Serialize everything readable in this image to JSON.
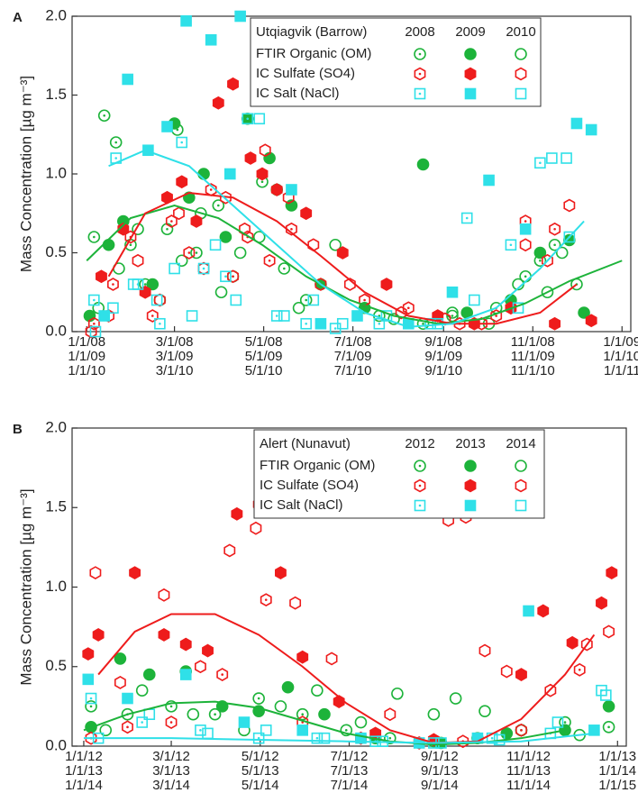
{
  "chart_data": [
    {
      "type": "scatter",
      "panel": "A",
      "ylabel": "Mass Concentration [µg m⁻³]",
      "legend_title": "Utqiagvik (Barrow)",
      "years": [
        "2008",
        "2009",
        "2010"
      ],
      "species": [
        {
          "name": "FTIR Organic (OM)",
          "color": "#1db33a",
          "shape": "circle"
        },
        {
          "name": "IC Sulfate (SO4)",
          "color": "#ee1c1c",
          "shape": "hexagon"
        },
        {
          "name": "IC Salt (NaCl)",
          "color": "#2fe0e8",
          "shape": "square"
        }
      ],
      "styles": [
        "dotted",
        "filled",
        "open"
      ],
      "xlim": [
        -10,
        372
      ],
      "ylim": [
        0,
        2.0
      ],
      "xticks": [
        {
          "value": 0,
          "label": [
            "1/1/08",
            "1/1/09",
            "1/1/10"
          ]
        },
        {
          "value": 60,
          "label": [
            "3/1/08",
            "3/1/09",
            "3/1/10"
          ]
        },
        {
          "value": 121,
          "label": [
            "5/1/08",
            "5/1/09",
            "5/1/10"
          ]
        },
        {
          "value": 182,
          "label": [
            "7/1/08",
            "7/1/09",
            "7/1/10"
          ]
        },
        {
          "value": 244,
          "label": [
            "9/1/08",
            "9/1/09",
            "9/1/10"
          ]
        },
        {
          "value": 305,
          "label": [
            "11/1/08",
            "11/1/09",
            "11/1/10"
          ]
        },
        {
          "value": 366,
          "label": [
            "1/1/09",
            "1/1/10",
            "1/1/11"
          ]
        }
      ],
      "yticks": [
        {
          "value": 0,
          "label": "0.0"
        },
        {
          "value": 0.5,
          "label": "0.5"
        },
        {
          "value": 1.0,
          "label": "1.0"
        },
        {
          "value": 1.5,
          "label": "1.5"
        },
        {
          "value": 2.0,
          "label": "2.0"
        }
      ],
      "series": [
        {
          "species": 0,
          "year": 0,
          "x": [
            5,
            12,
            20,
            30,
            40,
            55,
            62,
            75,
            90,
            100,
            120,
            135,
            150,
            200,
            230,
            250,
            280,
            300,
            310,
            320,
            335
          ],
          "values": [
            0.6,
            1.37,
            1.2,
            0.55,
            0.3,
            0.65,
            1.28,
            0.5,
            0.8,
            0.35,
            0.95,
            0.4,
            0.2,
            0.1,
            0.05,
            0.1,
            0.15,
            0.35,
            0.45,
            0.55,
            0.3
          ]
        },
        {
          "species": 0,
          "year": 1,
          "x": [
            2,
            15,
            25,
            45,
            60,
            70,
            80,
            95,
            110,
            125,
            140,
            160,
            190,
            230,
            260,
            290,
            310,
            330,
            340
          ],
          "values": [
            0.1,
            0.55,
            0.7,
            0.3,
            1.32,
            0.85,
            1.0,
            0.6,
            1.35,
            1.1,
            0.8,
            0.3,
            0.15,
            1.06,
            0.12,
            0.2,
            0.5,
            0.58,
            0.12
          ]
        },
        {
          "species": 0,
          "year": 2,
          "x": [
            8,
            22,
            35,
            50,
            65,
            78,
            92,
            105,
            118,
            130,
            145,
            170,
            210,
            250,
            275,
            295,
            315,
            325
          ],
          "values": [
            0.15,
            0.4,
            0.65,
            0.2,
            0.45,
            0.75,
            0.25,
            0.5,
            0.6,
            0.9,
            0.15,
            0.55,
            0.08,
            0.12,
            0.05,
            0.3,
            0.25,
            0.5
          ]
        },
        {
          "species": 1,
          "year": 0,
          "x": [
            5,
            18,
            30,
            45,
            58,
            70,
            85,
            100,
            110,
            125,
            140,
            160,
            190,
            220,
            255,
            280,
            300,
            320
          ],
          "values": [
            0.05,
            0.3,
            0.6,
            0.1,
            0.7,
            0.5,
            0.9,
            0.35,
            0.6,
            0.45,
            0.65,
            0.3,
            0.2,
            0.15,
            0.05,
            0.1,
            0.7,
            0.65
          ]
        },
        {
          "species": 1,
          "year": 1,
          "x": [
            10,
            25,
            40,
            55,
            65,
            75,
            90,
            100,
            112,
            120,
            130,
            150,
            175,
            205,
            240,
            265,
            290,
            320,
            345
          ],
          "values": [
            0.35,
            0.65,
            0.25,
            0.85,
            0.95,
            0.7,
            1.45,
            1.57,
            1.1,
            1.0,
            0.9,
            0.75,
            0.5,
            0.3,
            0.1,
            0.05,
            0.15,
            0.05,
            0.07
          ]
        },
        {
          "species": 1,
          "year": 2,
          "x": [
            3,
            15,
            35,
            50,
            63,
            80,
            95,
            108,
            122,
            138,
            155,
            180,
            215,
            245,
            270,
            300,
            315,
            330
          ],
          "values": [
            0.0,
            0.1,
            0.45,
            0.2,
            0.75,
            0.4,
            0.85,
            0.65,
            1.15,
            0.85,
            0.55,
            0.3,
            0.12,
            0.08,
            0.05,
            0.55,
            0.45,
            0.8
          ]
        },
        {
          "species": 2,
          "year": 0,
          "x": [
            5,
            20,
            35,
            50,
            65,
            80,
            95,
            110,
            130,
            150,
            170,
            200,
            240,
            260,
            290,
            310,
            330
          ],
          "values": [
            0.2,
            1.1,
            0.3,
            0.05,
            1.2,
            0.4,
            0.35,
            1.35,
            0.1,
            0.05,
            0.02,
            0.05,
            0.05,
            0.72,
            0.55,
            1.07,
            0.6
          ]
        },
        {
          "species": 2,
          "year": 1,
          "x": [
            12,
            28,
            42,
            55,
            68,
            85,
            98,
            105,
            125,
            140,
            160,
            185,
            220,
            250,
            275,
            300,
            335,
            345
          ],
          "values": [
            0.1,
            1.6,
            1.15,
            1.3,
            1.97,
            1.85,
            1.0,
            2.0,
            1.88,
            0.9,
            0.05,
            0.1,
            0.05,
            0.25,
            0.96,
            0.65,
            1.32,
            1.28
          ]
        },
        {
          "species": 2,
          "year": 2,
          "x": [
            6,
            18,
            32,
            48,
            60,
            72,
            88,
            102,
            118,
            135,
            155,
            175,
            205,
            235,
            265,
            295,
            318,
            328
          ],
          "values": [
            0.0,
            0.15,
            0.3,
            0.2,
            0.4,
            0.1,
            0.55,
            0.2,
            1.35,
            0.1,
            0.2,
            0.05,
            0.1,
            0.05,
            0.2,
            0.15,
            1.1,
            1.1
          ]
        }
      ],
      "fits": [
        {
          "species": 0,
          "x": [
            0,
            30,
            60,
            90,
            120,
            150,
            180,
            210,
            240,
            270,
            300,
            330,
            366
          ],
          "values": [
            0.45,
            0.72,
            0.8,
            0.72,
            0.55,
            0.35,
            0.2,
            0.1,
            0.05,
            0.08,
            0.18,
            0.32,
            0.45
          ]
        },
        {
          "species": 1,
          "x": [
            15,
            40,
            70,
            100,
            130,
            160,
            190,
            220,
            250,
            280,
            310,
            335
          ],
          "values": [
            0.35,
            0.75,
            0.88,
            0.85,
            0.7,
            0.48,
            0.25,
            0.1,
            0.05,
            0.05,
            0.12,
            0.3
          ]
        },
        {
          "species": 2,
          "x": [
            15,
            40,
            70,
            100,
            130,
            160,
            190,
            220,
            250,
            280,
            310,
            340
          ],
          "values": [
            1.05,
            1.15,
            1.05,
            0.8,
            0.55,
            0.3,
            0.12,
            0.03,
            0.05,
            0.15,
            0.4,
            0.7
          ]
        }
      ]
    },
    {
      "type": "scatter",
      "panel": "B",
      "ylabel": "Mass Concentration [µg m⁻³]",
      "legend_title": "Alert (Nunavut)",
      "years": [
        "2012",
        "2013",
        "2014"
      ],
      "species": [
        {
          "name": "FTIR Organic (OM)",
          "color": "#1db33a",
          "shape": "circle"
        },
        {
          "name": "IC Sulfate (SO4)",
          "color": "#ee1c1c",
          "shape": "hexagon"
        },
        {
          "name": "IC Salt (NaCl)",
          "color": "#2fe0e8",
          "shape": "square"
        }
      ],
      "styles": [
        "dotted",
        "filled",
        "open"
      ],
      "xlim": [
        -8,
        372
      ],
      "ylim": [
        0,
        2.0
      ],
      "xticks": [
        {
          "value": 0,
          "label": [
            "1/1/12",
            "1/1/13",
            "1/1/14"
          ]
        },
        {
          "value": 60,
          "label": [
            "3/1/12",
            "3/1/13",
            "3/1/14"
          ]
        },
        {
          "value": 121,
          "label": [
            "5/1/12",
            "5/1/13",
            "5/1/14"
          ]
        },
        {
          "value": 182,
          "label": [
            "7/1/12",
            "7/1/13",
            "7/1/14"
          ]
        },
        {
          "value": 244,
          "label": [
            "9/1/12",
            "9/1/13",
            "9/1/14"
          ]
        },
        {
          "value": 305,
          "label": [
            "11/1/12",
            "11/1/13",
            "11/1/14"
          ]
        },
        {
          "value": 366,
          "label": [
            "1/1/13",
            "1/1/14",
            "1/1/15"
          ]
        }
      ],
      "yticks": [
        {
          "value": 0,
          "label": "0.0"
        },
        {
          "value": 0.5,
          "label": "0.5"
        },
        {
          "value": 1.0,
          "label": "1.0"
        },
        {
          "value": 1.5,
          "label": "1.5"
        },
        {
          "value": 2.0,
          "label": "2.0"
        }
      ],
      "series": [
        {
          "species": 0,
          "year": 0,
          "x": [
            5,
            30,
            60,
            90,
            120,
            150,
            180,
            210,
            240,
            270,
            300,
            330,
            360
          ],
          "values": [
            0.25,
            0.2,
            0.25,
            0.2,
            0.3,
            0.2,
            0.1,
            0.05,
            0.03,
            0.05,
            0.1,
            0.15,
            0.12
          ]
        },
        {
          "species": 0,
          "year": 1,
          "x": [
            5,
            25,
            45,
            70,
            95,
            120,
            140,
            165,
            200,
            245,
            290,
            330,
            360
          ],
          "values": [
            0.12,
            0.55,
            0.45,
            0.47,
            0.25,
            0.22,
            0.37,
            0.2,
            0.05,
            0.02,
            0.08,
            0.1,
            0.25
          ]
        },
        {
          "species": 0,
          "year": 2,
          "x": [
            15,
            40,
            75,
            110,
            135,
            160,
            190,
            215,
            240,
            255,
            275,
            300,
            340
          ],
          "values": [
            0.1,
            0.35,
            0.2,
            0.1,
            0.25,
            0.35,
            0.15,
            0.33,
            0.2,
            0.3,
            0.22,
            0.1,
            0.07
          ]
        },
        {
          "species": 1,
          "year": 0,
          "x": [
            5,
            30,
            60,
            95,
            125,
            150,
            190,
            230,
            260,
            300,
            340
          ],
          "values": [
            0.05,
            0.12,
            0.15,
            0.45,
            0.92,
            0.15,
            0.05,
            0.02,
            0.03,
            0.1,
            0.48
          ]
        },
        {
          "species": 1,
          "year": 1,
          "x": [
            3,
            10,
            35,
            55,
            70,
            85,
            105,
            120,
            135,
            150,
            175,
            200,
            240,
            300,
            315,
            335,
            355,
            362
          ],
          "values": [
            0.58,
            0.7,
            1.09,
            0.7,
            0.64,
            0.6,
            1.46,
            1.52,
            1.09,
            0.56,
            0.28,
            0.08,
            0.04,
            0.45,
            0.85,
            0.65,
            0.9,
            1.09
          ]
        },
        {
          "species": 1,
          "year": 2,
          "x": [
            8,
            25,
            55,
            80,
            100,
            118,
            130,
            145,
            170,
            210,
            250,
            262,
            275,
            290,
            320,
            345,
            360
          ],
          "values": [
            1.09,
            0.4,
            0.95,
            0.5,
            1.23,
            1.37,
            1.65,
            0.9,
            0.55,
            0.2,
            1.42,
            1.44,
            0.6,
            0.47,
            0.35,
            0.64,
            0.72
          ]
        },
        {
          "species": 2,
          "year": 0,
          "x": [
            5,
            40,
            80,
            120,
            160,
            200,
            240,
            280,
            320,
            355
          ],
          "values": [
            0.3,
            0.15,
            0.1,
            0.05,
            0.05,
            0.03,
            0.02,
            0.05,
            0.08,
            0.35
          ]
        },
        {
          "species": 2,
          "year": 1,
          "x": [
            3,
            30,
            70,
            110,
            150,
            190,
            230,
            270,
            305,
            350
          ],
          "values": [
            0.42,
            0.3,
            0.45,
            0.15,
            0.1,
            0.05,
            0.02,
            0.05,
            0.85,
            0.1
          ]
        },
        {
          "species": 2,
          "year": 2,
          "x": [
            10,
            45,
            85,
            125,
            165,
            205,
            245,
            285,
            325,
            358
          ],
          "values": [
            0.05,
            0.2,
            0.08,
            0.1,
            0.05,
            0.03,
            0.02,
            0.04,
            0.15,
            0.32
          ]
        }
      ],
      "fits": [
        {
          "species": 0,
          "x": [
            0,
            30,
            60,
            90,
            120,
            150,
            180,
            210,
            240,
            270,
            300,
            330
          ],
          "values": [
            0.1,
            0.2,
            0.27,
            0.28,
            0.24,
            0.16,
            0.08,
            0.03,
            0.01,
            0.02,
            0.05,
            0.1
          ]
        },
        {
          "species": 1,
          "x": [
            10,
            35,
            60,
            90,
            120,
            150,
            180,
            210,
            240,
            270,
            300,
            330,
            350
          ],
          "values": [
            0.45,
            0.72,
            0.83,
            0.83,
            0.7,
            0.5,
            0.27,
            0.1,
            0.02,
            0.03,
            0.17,
            0.45,
            0.7
          ]
        },
        {
          "species": 2,
          "x": [
            0,
            60,
            120,
            180,
            240,
            300,
            350
          ],
          "values": [
            0.05,
            0.05,
            0.04,
            0.03,
            0.02,
            0.03,
            0.08
          ]
        }
      ]
    }
  ]
}
